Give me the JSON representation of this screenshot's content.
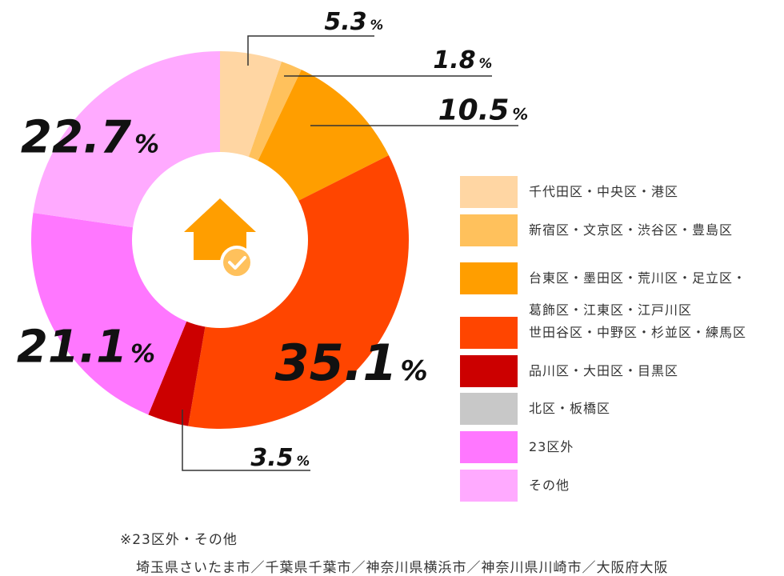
{
  "chart_data": {
    "type": "donut",
    "categories": [
      "千代田区・中央区・港区",
      "新宿区・文京区・渋谷区・豊島区",
      "台東区・墨田区・荒川区・足立区・\n葛飾区・江東区・江戸川区",
      "世田谷区・中野区・杉並区・練馬区",
      "品川区・大田区・目黒区",
      "北区・板橋区",
      "23区外",
      "その他"
    ],
    "values": [
      5.3,
      1.8,
      10.5,
      35.1,
      3.5,
      0,
      21.1,
      22.7
    ],
    "colors": [
      "#ffd6a3",
      "#ffc15c",
      "#ff9e00",
      "#ff4500",
      "#cc0000",
      "#c8c8c8",
      "#ff77ff",
      "#ffaaff"
    ],
    "unit": "%",
    "note": {
      "label": "※23区外・その他",
      "text": "埼玉県さいたま市／千葉県千葉市／神奈川県横浜市／神奈川県川崎市／大阪府大阪"
    }
  }
}
